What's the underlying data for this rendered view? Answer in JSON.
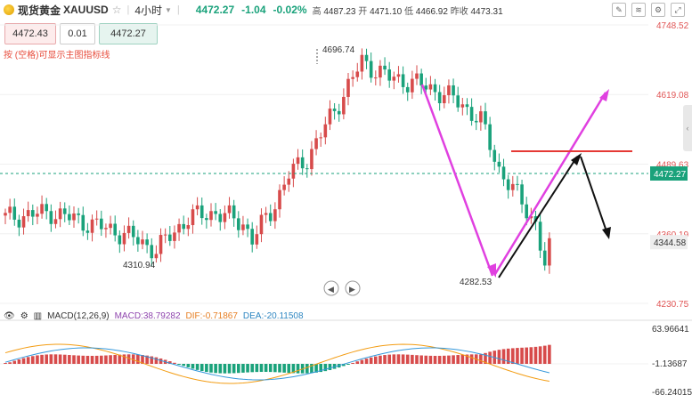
{
  "header": {
    "name": "现货黄金",
    "code": "XAUUSD",
    "period": "4小时",
    "price": "4472.27",
    "change": "-1.04",
    "change_pct": "-0.02%",
    "high_label": "高",
    "high": "4487.23",
    "open_label": "开",
    "open": "4471.10",
    "low_label": "低",
    "low": "4466.92",
    "prev_label": "昨收",
    "prev": "4473.31"
  },
  "trade": {
    "sell": "4472.43",
    "qty": "0.01",
    "buy": "4472.27",
    "hint": "按 (空格)可显示主图指标线"
  },
  "indicator": {
    "title": "MACD(12,26,9)",
    "macd": "MACD:38.79282",
    "dif": "DIF:-0.71867",
    "dea": "DEA:-20.11508"
  },
  "colors": {
    "up": "#d74b4b",
    "down": "#1aa27b",
    "current": "#1aa27b",
    "magenta": "#e040e0",
    "resistance": "#e53935"
  },
  "chart_data": {
    "type": "candlestick",
    "price_axis": [
      "4748.52",
      "4619.08",
      "4489.63",
      "4360.19",
      "4230.75"
    ],
    "current_price": "4472.27",
    "marker_price": "4344.58",
    "annotations": [
      "4696.74",
      "4310.94",
      "4282.53"
    ],
    "macd_axis": [
      "63.96641",
      "-1.13687",
      "-66.24015"
    ],
    "ylim": [
      4230.75,
      4748.52
    ]
  }
}
